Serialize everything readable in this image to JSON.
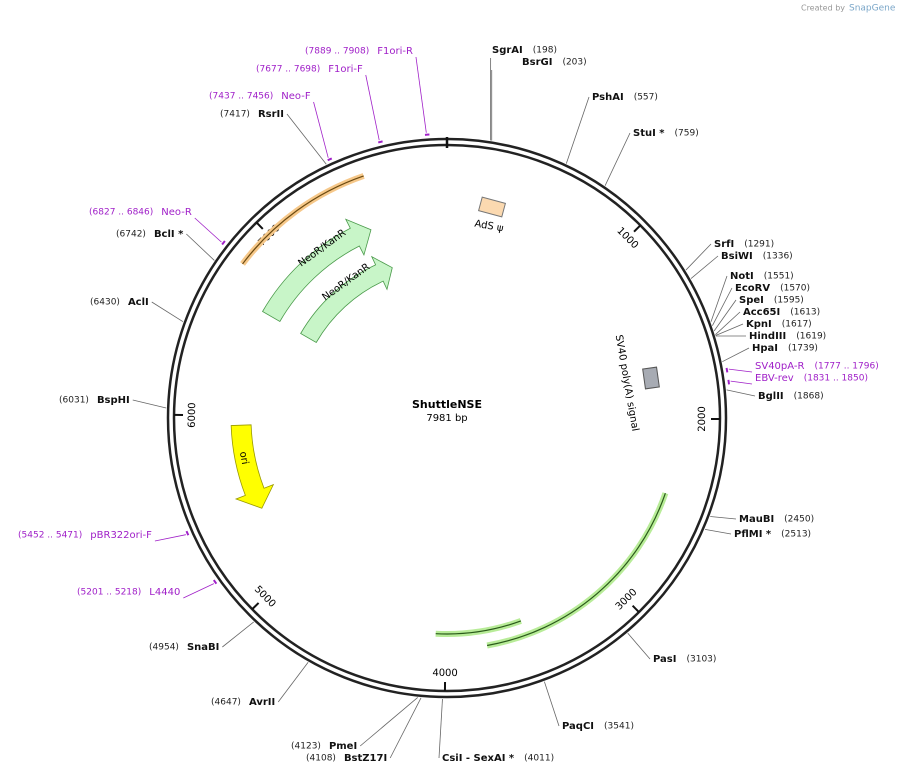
{
  "header": {
    "created_by": "Created by",
    "brand": "SnapGene"
  },
  "plasmid": {
    "name": "ShuttleNSE",
    "length": "7981 bp"
  },
  "ticks": [
    "1000",
    "2000",
    "3000",
    "4000",
    "5000",
    "6000",
    "7000"
  ],
  "sites": [
    {
      "name": "SgrAI",
      "position": "(198)"
    },
    {
      "name": "BsrGI",
      "position": "(203)"
    },
    {
      "name": "PshAI",
      "position": "(557)"
    },
    {
      "name": "StuI *",
      "position": "(759)"
    },
    {
      "name": "SrfI",
      "position": "(1291)"
    },
    {
      "name": "BsiWI",
      "position": "(1336)"
    },
    {
      "name": "NotI",
      "position": "(1551)"
    },
    {
      "name": "EcoRV",
      "position": "(1570)"
    },
    {
      "name": "SpeI",
      "position": "(1595)"
    },
    {
      "name": "Acc65I",
      "position": "(1613)"
    },
    {
      "name": "KpnI",
      "position": "(1617)"
    },
    {
      "name": "HindIII",
      "position": "(1619)"
    },
    {
      "name": "HpaI",
      "position": "(1739)"
    },
    {
      "name": "BglII",
      "position": "(1868)"
    },
    {
      "name": "MauBI",
      "position": "(2450)"
    },
    {
      "name": "PflMI *",
      "position": "(2513)"
    },
    {
      "name": "PasI",
      "position": "(3103)"
    },
    {
      "name": "PaqCI",
      "position": "(3541)"
    },
    {
      "name": "CsiI  - SexAI *",
      "position": "(4011)"
    },
    {
      "name": "PmeI",
      "position": "(4123)"
    },
    {
      "name": "BstZ17I",
      "position": "(4108)"
    },
    {
      "name": "AvrII",
      "position": "(4647)"
    },
    {
      "name": "SnaBI",
      "position": "(4954)"
    },
    {
      "name": "BspHI",
      "position": "(6031)"
    },
    {
      "name": "AclI",
      "position": "(6430)"
    },
    {
      "name": "BclI *",
      "position": "(6742)"
    },
    {
      "name": "RsrII",
      "position": "(7417)"
    }
  ],
  "primers": [
    {
      "name": "F1ori-R",
      "range": "(7889 .. 7908)"
    },
    {
      "name": "F1ori-F",
      "range": "(7677 .. 7698)"
    },
    {
      "name": "Neo-F",
      "range": "(7437 .. 7456)"
    },
    {
      "name": "Neo-R",
      "range": "(6827 .. 6846)"
    },
    {
      "name": "SV40pA-R",
      "range": "(1777 .. 1796)"
    },
    {
      "name": "EBV-rev",
      "range": "(1831 .. 1850)"
    },
    {
      "name": "pBR322ori-F",
      "range": "(5452 .. 5471)"
    },
    {
      "name": "L4440",
      "range": "(5201 .. 5218)"
    }
  ],
  "features": [
    "AdS ψ",
    "SV40 poly(A) signal",
    "NeoR/KanR",
    "NeoR/KanR",
    "ori"
  ]
}
